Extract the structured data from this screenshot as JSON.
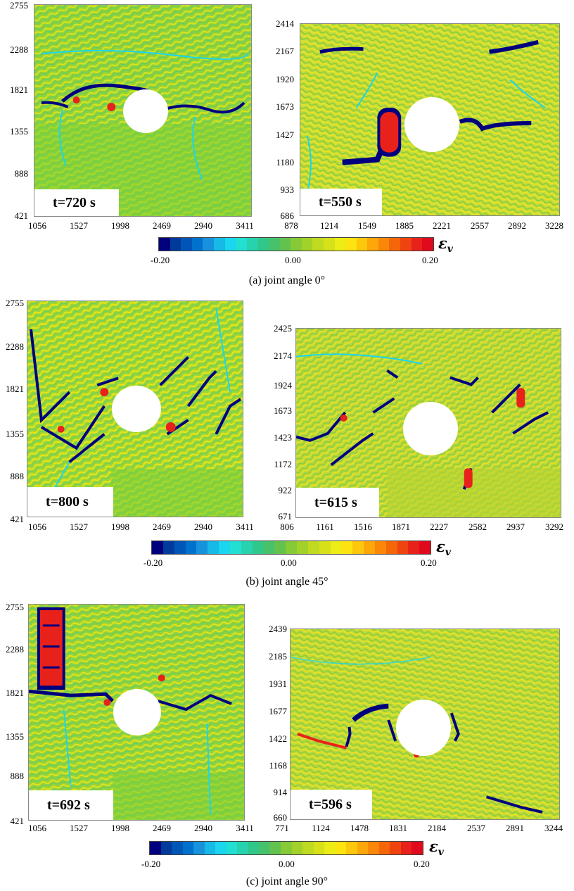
{
  "colormap": [
    "#00007e",
    "#003a9a",
    "#0056b6",
    "#0072ce",
    "#1792dd",
    "#17b9e6",
    "#1ad6ee",
    "#22dfd2",
    "#26d3ae",
    "#30c88a",
    "#48c26a",
    "#63c24e",
    "#86ca37",
    "#a2d22a",
    "#bfda20",
    "#d6e11a",
    "#ecec16",
    "#fde410",
    "#fdc70c",
    "#fda70a",
    "#fb8708",
    "#f56608",
    "#ef4410",
    "#e8221a",
    "#e00a1c"
  ],
  "colorbar_ticks": [
    "-0.20",
    "0.00",
    "0.20"
  ],
  "colorbar_symbol": "ε",
  "colorbar_symbol_sub": "v",
  "panels": [
    {
      "caption": "(a) joint angle 0°",
      "left": {
        "time": "t=720 s",
        "yticks": [
          "2755",
          "2288",
          "1821",
          "1355",
          "888",
          "421"
        ],
        "xticks": [
          "1056",
          "1527",
          "1998",
          "2469",
          "2940",
          "3411"
        ]
      },
      "right": {
        "time": "t=550 s",
        "yticks": [
          "2414",
          "2167",
          "1920",
          "1673",
          "1427",
          "1180",
          "933",
          "686"
        ],
        "xticks": [
          "878",
          "1214",
          "1549",
          "1885",
          "2221",
          "2557",
          "2892",
          "3228"
        ]
      }
    },
    {
      "caption": "(b) joint angle 45°",
      "left": {
        "time": "t=800 s",
        "yticks": [
          "2755",
          "2288",
          "1821",
          "1355",
          "888",
          "421"
        ],
        "xticks": [
          "1056",
          "1527",
          "1998",
          "2469",
          "2940",
          "3411"
        ]
      },
      "right": {
        "time": "t=615 s",
        "yticks": [
          "2425",
          "2174",
          "1924",
          "1673",
          "1423",
          "1172",
          "922",
          "671"
        ],
        "xticks": [
          "806",
          "1161",
          "1516",
          "1871",
          "2227",
          "2582",
          "2937",
          "3292"
        ]
      }
    },
    {
      "caption": "(c) joint angle 90°",
      "left": {
        "time": "t=692 s",
        "yticks": [
          "2755",
          "2288",
          "1821",
          "1355",
          "888",
          "421"
        ],
        "xticks": [
          "1056",
          "1527",
          "1998",
          "2469",
          "2940",
          "3411"
        ]
      },
      "right": {
        "time": "t=596 s",
        "yticks": [
          "2439",
          "2185",
          "1931",
          "1677",
          "1422",
          "1168",
          "914",
          "660"
        ],
        "xticks": [
          "771",
          "1124",
          "1478",
          "1831",
          "2184",
          "2537",
          "2891",
          "3244"
        ]
      }
    }
  ]
}
